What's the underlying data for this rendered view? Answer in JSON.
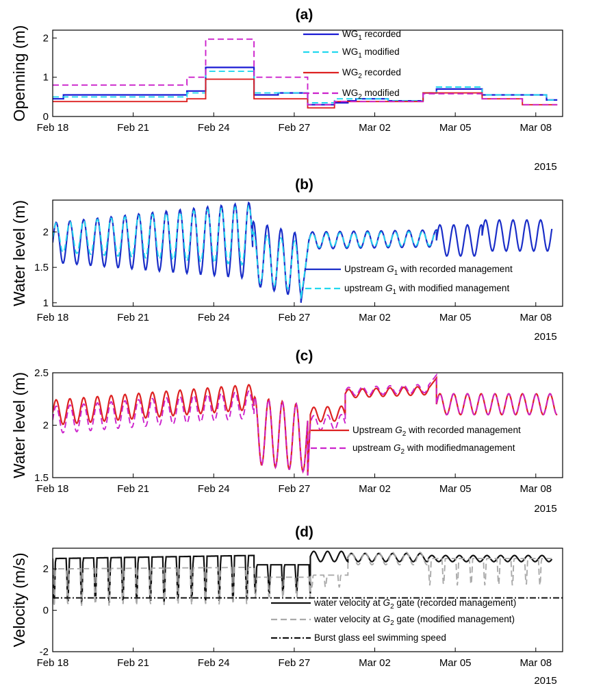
{
  "page": {
    "background": "#ffffff"
  },
  "x_ticks": [
    "Feb 18",
    "Feb 21",
    "Feb 24",
    "Feb 27",
    "Mar 02",
    "Mar 05",
    "Mar 08"
  ],
  "year_label": "2015",
  "chart_data": [
    {
      "id": "a",
      "type": "line",
      "title": "(a)",
      "xlabel": "",
      "ylabel": "Openning (m)",
      "xlim": [
        0,
        19
      ],
      "ylim": [
        0,
        2.2
      ],
      "yticks": [
        "0",
        "1",
        "2"
      ],
      "ytick_values": [
        0,
        1,
        2
      ],
      "grid": false,
      "legend_position": "top-right",
      "series": [
        {
          "name_prefix": "WG",
          "name_sub": "1",
          "name_suffix": " recorded",
          "color": "#1a1ad4",
          "dash": "solid",
          "x": [
            0,
            0.4,
            0.4,
            5.0,
            5.0,
            5.7,
            5.7,
            7.5,
            7.5,
            8.4,
            8.4,
            9.5,
            9.5,
            10.5,
            10.5,
            11.0,
            11.0,
            11.3,
            11.3,
            12.5,
            12.5,
            13.8,
            13.8,
            14.3,
            14.3,
            16.0,
            16.0,
            16.8,
            16.8,
            18.4,
            18.4,
            18.8
          ],
          "values": [
            0.45,
            0.45,
            0.55,
            0.55,
            0.65,
            0.65,
            1.25,
            1.25,
            0.55,
            0.55,
            0.6,
            0.6,
            0.3,
            0.3,
            0.35,
            0.35,
            0.4,
            0.4,
            0.45,
            0.45,
            0.4,
            0.4,
            0.6,
            0.6,
            0.7,
            0.7,
            0.55,
            0.55,
            0.55,
            0.55,
            0.42,
            0.42
          ]
        },
        {
          "name_prefix": "WG",
          "name_sub": "1",
          "name_suffix": " modified",
          "color": "#22d8ee",
          "dash": "dashed",
          "x": [
            0,
            0.4,
            0.4,
            5.0,
            5.0,
            5.7,
            5.7,
            7.5,
            7.5,
            8.4,
            8.4,
            9.5,
            9.5,
            10.5,
            10.5,
            11.0,
            11.0,
            11.3,
            11.3,
            12.5,
            12.5,
            13.8,
            13.8,
            14.3,
            14.3,
            16.0,
            16.0,
            16.8,
            16.8,
            18.4,
            18.4,
            18.8
          ],
          "values": [
            0.5,
            0.5,
            0.5,
            0.5,
            0.6,
            0.6,
            1.15,
            1.15,
            0.6,
            0.6,
            0.6,
            0.6,
            0.35,
            0.35,
            0.45,
            0.45,
            0.45,
            0.45,
            0.45,
            0.45,
            0.4,
            0.4,
            0.6,
            0.6,
            0.75,
            0.75,
            0.55,
            0.55,
            0.55,
            0.55,
            0.42,
            0.42
          ]
        },
        {
          "name_prefix": "WG",
          "name_sub": "2",
          "name_suffix": " recorded",
          "color": "#dd2222",
          "dash": "solid",
          "x": [
            0,
            5.0,
            5.0,
            5.7,
            5.7,
            7.5,
            7.5,
            8.4,
            8.4,
            9.5,
            9.5,
            10.5,
            10.5,
            12.5,
            12.5,
            13.8,
            13.8,
            14.3,
            14.3,
            16.0,
            16.0,
            17.5,
            17.5,
            18.8
          ],
          "values": [
            0.38,
            0.38,
            0.45,
            0.45,
            0.95,
            0.95,
            0.45,
            0.45,
            0.45,
            0.45,
            0.22,
            0.22,
            0.38,
            0.38,
            0.38,
            0.38,
            0.6,
            0.6,
            0.6,
            0.6,
            0.45,
            0.45,
            0.3,
            0.3
          ]
        },
        {
          "name_prefix": "WG",
          "name_sub": "2",
          "name_suffix": " modified",
          "color": "#cc22cc",
          "dash": "dashed",
          "x": [
            0,
            0.4,
            0.4,
            5.0,
            5.0,
            5.7,
            5.7,
            7.5,
            7.5,
            8.4,
            8.4,
            9.5,
            9.5,
            10.5,
            10.5,
            12.5,
            12.5,
            13.8,
            13.8,
            14.3,
            14.3,
            16.0,
            16.0,
            17.5,
            17.5,
            18.8
          ],
          "values": [
            0.8,
            0.8,
            0.8,
            0.8,
            1.0,
            1.0,
            1.97,
            1.97,
            1.0,
            1.0,
            1.0,
            1.0,
            0.3,
            0.3,
            0.38,
            0.38,
            0.38,
            0.38,
            0.58,
            0.58,
            0.58,
            0.58,
            0.45,
            0.45,
            0.3,
            0.3
          ]
        }
      ]
    },
    {
      "id": "b",
      "type": "line",
      "title": "(b)",
      "xlabel": "",
      "ylabel": "Water level (m)",
      "xlim": [
        0,
        19
      ],
      "ylim": [
        0.95,
        2.45
      ],
      "yticks": [
        "1",
        "1.5",
        "2"
      ],
      "ytick_values": [
        1,
        1.5,
        2
      ],
      "grid": false,
      "legend_position": "lower-right",
      "series": [
        {
          "name_pre": "Upstream ",
          "name_var": "G",
          "name_sub": "1",
          "name_post": " with recorded management",
          "color": "#1a2ec8",
          "dash": "solid",
          "segments": [
            [
              0,
              7.45,
              "osc",
              1.85,
              0.28,
              0.004,
              0.035
            ],
            [
              7.45,
              9.25,
              "osc_drop",
              1.7,
              0.45,
              -0.1,
              0
            ],
            [
              9.25,
              9.55,
              "line",
              1.0,
              1.9
            ],
            [
              9.55,
              14.3,
              "osc",
              1.88,
              0.12,
              0.006,
              0
            ],
            [
              14.3,
              16.0,
              "osc",
              1.88,
              0.22,
              0,
              0
            ],
            [
              16.0,
              18.6,
              "osc",
              1.95,
              0.22,
              0,
              0
            ]
          ],
          "values": []
        },
        {
          "name_pre": "upstream ",
          "name_var": "G",
          "name_sub": "1",
          "name_post": " with modified management",
          "color": "#22d8ee",
          "dash": "dashed",
          "segments": [
            [
              0,
              7.45,
              "osc",
              1.92,
              0.2,
              0.004,
              0.03
            ],
            [
              7.45,
              9.25,
              "osc_drop",
              1.65,
              0.35,
              -0.08,
              0
            ],
            [
              9.25,
              9.55,
              "line",
              1.05,
              1.88
            ],
            [
              9.55,
              14.3,
              "osc",
              1.88,
              0.1,
              0.006,
              0
            ]
          ],
          "values": []
        }
      ]
    },
    {
      "id": "c",
      "type": "line",
      "title": "(c)",
      "xlabel": "",
      "ylabel": "Water level (m)",
      "xlim": [
        0,
        19
      ],
      "ylim": [
        1.5,
        2.5
      ],
      "yticks": [
        "1.5",
        "2",
        "2.5"
      ],
      "ytick_values": [
        1.5,
        2,
        2.5
      ],
      "grid": false,
      "legend_position": "right",
      "series": [
        {
          "name_pre": "Upstream ",
          "name_var": "G",
          "name_sub": "2",
          "name_post": " with recorded management",
          "color": "#dd2222",
          "dash": "solid",
          "segments": [
            [
              0,
              7.5,
              "osc",
              2.12,
              0.12,
              0.02,
              0
            ],
            [
              7.5,
              9.5,
              "osc_drop",
              1.95,
              0.32,
              -0.04,
              0
            ],
            [
              9.5,
              9.6,
              "line",
              1.52,
              2.05
            ],
            [
              9.6,
              10.9,
              "osc",
              2.1,
              0.07,
              0.01,
              0
            ],
            [
              10.9,
              14.0,
              "osc",
              2.3,
              0.04,
              0.01,
              0
            ],
            [
              14.0,
              14.3,
              "line",
              2.35,
              2.45
            ],
            [
              14.3,
              18.8,
              "osc",
              2.2,
              0.1,
              0,
              0
            ]
          ],
          "values": []
        },
        {
          "name_pre": "upstream ",
          "name_var": "G",
          "name_sub": "2",
          "name_post": " with modifiedmanagement",
          "color": "#cc22cc",
          "dash": "dashed",
          "segments": [
            [
              0,
              7.5,
              "osc",
              2.05,
              0.13,
              0.02,
              0
            ],
            [
              7.5,
              9.5,
              "osc_drop",
              1.95,
              0.32,
              -0.04,
              0
            ],
            [
              9.5,
              9.6,
              "line",
              1.52,
              2.0
            ],
            [
              9.6,
              10.9,
              "osc",
              2.02,
              0.07,
              0.01,
              0
            ],
            [
              10.9,
              14.0,
              "osc",
              2.32,
              0.04,
              0.01,
              0
            ],
            [
              14.0,
              14.3,
              "line",
              2.38,
              2.48
            ],
            [
              14.3,
              18.8,
              "osc",
              2.2,
              0.1,
              0,
              0
            ]
          ],
          "values": []
        }
      ]
    },
    {
      "id": "d",
      "type": "line",
      "title": "(d)",
      "xlabel": "",
      "ylabel": "Velocity (m/s)",
      "xlim": [
        0,
        19
      ],
      "ylim": [
        -2,
        3
      ],
      "yticks": [
        "-2",
        "0",
        "2"
      ],
      "ytick_values": [
        -2,
        0,
        2
      ],
      "grid": false,
      "legend_position": "lower-right",
      "series": [
        {
          "name_pre": "water velocity at ",
          "name_var": "G",
          "name_sub": "2",
          "name_post": " gate (recorded management)",
          "color": "#111111",
          "dash": "solid",
          "segments": [
            [
              0,
              7.5,
              "pulse",
              2.5,
              2.2,
              0.02,
              0
            ],
            [
              7.5,
              9.6,
              "pulse",
              2.2,
              1.4,
              0,
              0
            ],
            [
              9.6,
              11.0,
              "osc",
              2.6,
              0.25,
              0,
              0
            ],
            [
              11.0,
              14.0,
              "osc",
              2.55,
              0.2,
              0,
              0
            ],
            [
              14.0,
              18.6,
              "osc",
              2.5,
              0.15,
              0,
              0
            ]
          ],
          "values": []
        },
        {
          "name_pre": "water velocity at ",
          "name_var": "G",
          "name_sub": "2",
          "name_post": " gate (modified management)",
          "color": "#aaaaaa",
          "dash": "dashed",
          "segments": [
            [
              0,
              7.5,
              "pulse",
              2.0,
              1.8,
              0.01,
              0
            ],
            [
              7.5,
              9.6,
              "pulse",
              1.6,
              1.0,
              0,
              0
            ],
            [
              9.6,
              11.0,
              "pulse",
              1.7,
              0.6,
              0,
              0
            ],
            [
              11.0,
              14.0,
              "osc",
              2.5,
              0.3,
              0,
              0
            ],
            [
              14.0,
              18.6,
              "pulse",
              2.5,
              1.3,
              0,
              0
            ]
          ],
          "values": []
        },
        {
          "name_pre": "Burst glass eel swimming speed",
          "name_var": "",
          "name_sub": "",
          "name_post": "",
          "color": "#111111",
          "dash": "dashdot",
          "x": [
            0,
            19
          ],
          "values": [
            0.6,
            0.6
          ]
        }
      ]
    }
  ]
}
